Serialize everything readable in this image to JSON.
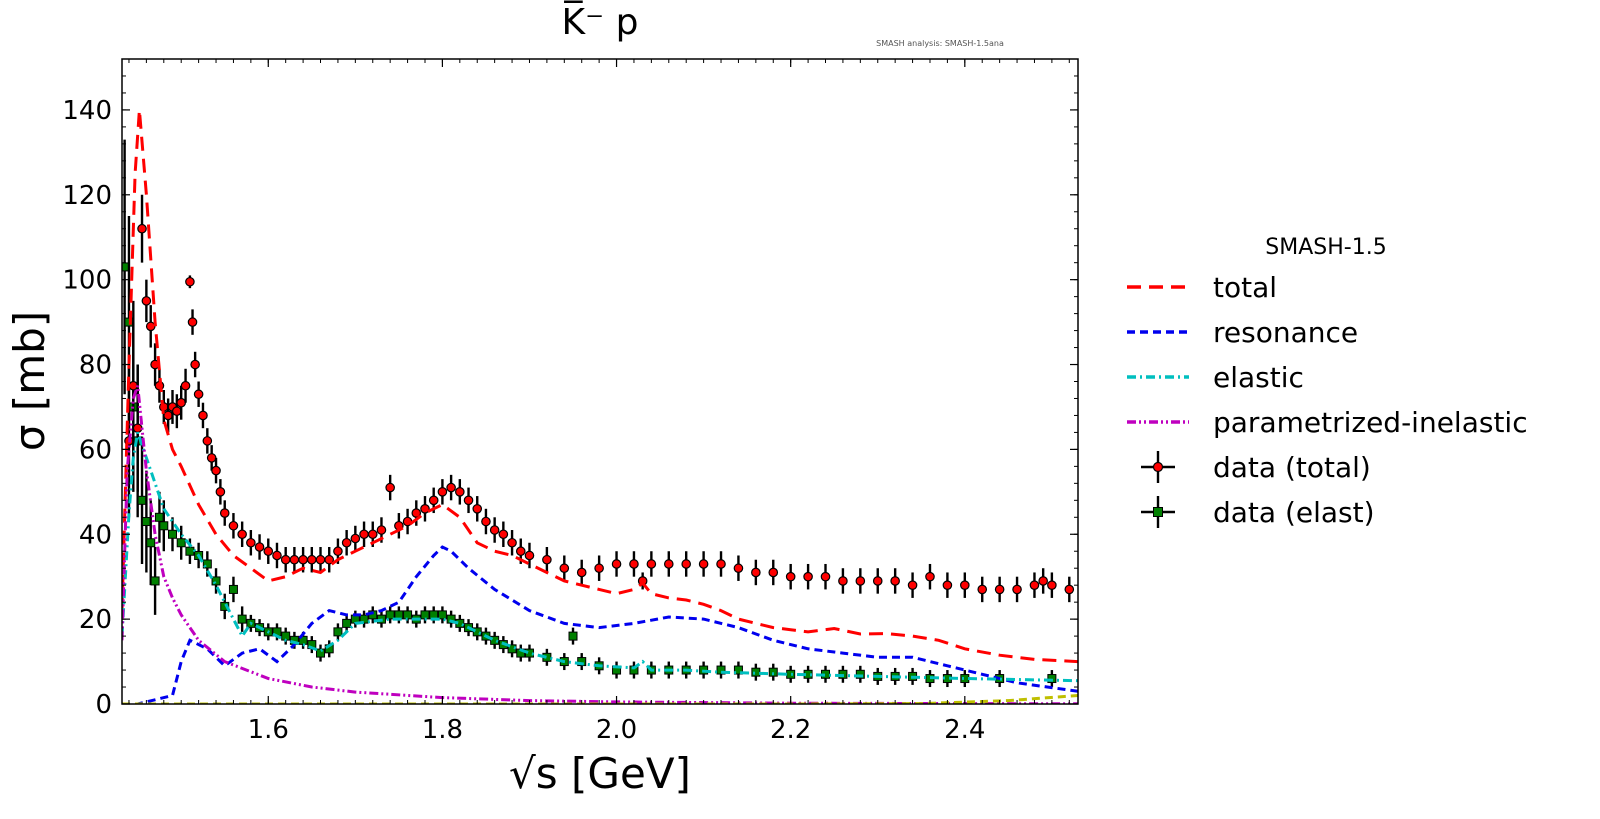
{
  "chart_data": {
    "type": "line",
    "title": "K̅⁻ p",
    "watermark": "SMASH analysis: SMASH-1.5ana",
    "xlabel": "√s [GeV]",
    "ylabel": "σ [mb]",
    "xlim": [
      1.432,
      2.53
    ],
    "ylim": [
      0,
      152
    ],
    "xticks": [
      1.6,
      1.8,
      2.0,
      2.2,
      2.4
    ],
    "xtick_labels": [
      "1.6",
      "1.8",
      "2.0",
      "2.2",
      "2.4"
    ],
    "yticks": [
      0,
      20,
      40,
      60,
      80,
      100,
      120,
      140
    ],
    "ytick_labels": [
      "0",
      "20",
      "40",
      "60",
      "80",
      "100",
      "120",
      "140"
    ],
    "grid": false,
    "legend_title": "SMASH-1.5",
    "legend_position": "outside-right",
    "series": [
      {
        "name": "total",
        "color": "#ff0000",
        "style": "long-dash",
        "x": [
          1.432,
          1.44,
          1.447,
          1.452,
          1.46,
          1.47,
          1.48,
          1.49,
          1.5,
          1.52,
          1.54,
          1.56,
          1.58,
          1.6,
          1.62,
          1.64,
          1.66,
          1.68,
          1.7,
          1.72,
          1.74,
          1.76,
          1.78,
          1.8,
          1.82,
          1.84,
          1.86,
          1.88,
          1.9,
          1.92,
          1.94,
          1.96,
          1.98,
          2.0,
          2.02,
          2.03,
          2.04,
          2.06,
          2.08,
          2.1,
          2.12,
          2.14,
          2.16,
          2.18,
          2.2,
          2.22,
          2.25,
          2.28,
          2.31,
          2.34,
          2.37,
          2.4,
          2.44,
          2.48,
          2.53
        ],
        "y": [
          22,
          80,
          125,
          140,
          120,
          90,
          67,
          60,
          56,
          47,
          40,
          35,
          32,
          29,
          30,
          32,
          31,
          34,
          36,
          38,
          40,
          42,
          45,
          47,
          44,
          38,
          36,
          35,
          33,
          31,
          29,
          28,
          27,
          26,
          27,
          28.5,
          26,
          25,
          24.5,
          23.5,
          22,
          20,
          19,
          18,
          17.5,
          17,
          17.8,
          16.5,
          16.6,
          16,
          15,
          13,
          11.5,
          10.5,
          10
        ]
      },
      {
        "name": "resonance",
        "color": "#0000ee",
        "style": "dash",
        "x": [
          1.432,
          1.45,
          1.49,
          1.5,
          1.51,
          1.53,
          1.55,
          1.57,
          1.59,
          1.61,
          1.63,
          1.65,
          1.67,
          1.69,
          1.71,
          1.73,
          1.75,
          1.77,
          1.79,
          1.8,
          1.81,
          1.83,
          1.86,
          1.9,
          1.94,
          1.98,
          2.02,
          2.06,
          2.1,
          2.14,
          2.18,
          2.22,
          2.26,
          2.3,
          2.34,
          2.38,
          2.42,
          2.46,
          2.53
        ],
        "y": [
          0,
          0,
          2,
          10,
          15,
          13,
          9,
          12,
          13,
          10,
          14,
          19,
          22,
          21,
          21,
          22,
          24,
          30,
          35,
          37,
          36,
          32,
          27,
          22,
          19,
          18,
          19,
          20.5,
          20,
          18,
          15,
          13,
          12,
          11,
          11,
          9,
          7,
          5,
          3
        ]
      },
      {
        "name": "elastic",
        "color": "#00bfbf",
        "style": "dash-dot",
        "x": [
          1.432,
          1.44,
          1.445,
          1.45,
          1.46,
          1.47,
          1.48,
          1.49,
          1.5,
          1.52,
          1.54,
          1.56,
          1.57,
          1.58,
          1.6,
          1.62,
          1.64,
          1.66,
          1.68,
          1.7,
          1.74,
          1.78,
          1.8,
          1.82,
          1.84,
          1.86,
          1.9,
          1.94,
          1.98,
          2.02,
          2.03,
          2.04,
          2.08,
          2.12,
          2.2,
          2.3,
          2.4,
          2.53
        ],
        "y": [
          16,
          45,
          58,
          64,
          58,
          52,
          46,
          43,
          40,
          35,
          28,
          20,
          16,
          19,
          17,
          15,
          14,
          12.5,
          15,
          19,
          20,
          20,
          20,
          19,
          17,
          15,
          12,
          10,
          9,
          8.5,
          10,
          8,
          8,
          7.5,
          7,
          6.5,
          6,
          5.5
        ]
      },
      {
        "name": "parametrized-inelastic",
        "color": "#bf00bf",
        "style": "dash-dot-dot",
        "x": [
          1.432,
          1.438,
          1.445,
          1.45,
          1.455,
          1.46,
          1.47,
          1.48,
          1.49,
          1.5,
          1.52,
          1.55,
          1.6,
          1.65,
          1.7,
          1.8,
          1.9,
          2.0,
          2.2,
          2.4,
          2.53
        ],
        "y": [
          15,
          55,
          72,
          75,
          65,
          55,
          40,
          30,
          25,
          21,
          15,
          10,
          6,
          4,
          2.8,
          1.5,
          0.8,
          0.5,
          0.2,
          0.1,
          0.05
        ]
      },
      {
        "name": "other",
        "color": "#bfbf00",
        "style": "dash",
        "in_legend": false,
        "x": [
          1.432,
          2.2,
          2.35,
          2.45,
          2.53
        ],
        "y": [
          0,
          0,
          0.1,
          0.8,
          2
        ]
      }
    ],
    "data_total": {
      "name": "data (total)",
      "color": "#ff0000",
      "marker": "circle",
      "points": [
        [
          1.44,
          62,
          18
        ],
        [
          1.445,
          75,
          20
        ],
        [
          1.45,
          65,
          15
        ],
        [
          1.455,
          112,
          8
        ],
        [
          1.46,
          95,
          5
        ],
        [
          1.465,
          89,
          5
        ],
        [
          1.47,
          80,
          5
        ],
        [
          1.475,
          75,
          4
        ],
        [
          1.48,
          70,
          4
        ],
        [
          1.485,
          68,
          4
        ],
        [
          1.49,
          70,
          4
        ],
        [
          1.495,
          69,
          4
        ],
        [
          1.5,
          71,
          4
        ],
        [
          1.505,
          75,
          4
        ],
        [
          1.51,
          99.5,
          1.5
        ],
        [
          1.513,
          90,
          3
        ],
        [
          1.516,
          80,
          3
        ],
        [
          1.52,
          73,
          3
        ],
        [
          1.525,
          68,
          3
        ],
        [
          1.53,
          62,
          3
        ],
        [
          1.535,
          58,
          3
        ],
        [
          1.54,
          55,
          3
        ],
        [
          1.545,
          50,
          3
        ],
        [
          1.55,
          45,
          3
        ],
        [
          1.56,
          42,
          3
        ],
        [
          1.57,
          40,
          3
        ],
        [
          1.58,
          38,
          3
        ],
        [
          1.59,
          37,
          3
        ],
        [
          1.6,
          36,
          3
        ],
        [
          1.61,
          35,
          3
        ],
        [
          1.62,
          34,
          3
        ],
        [
          1.63,
          34,
          3
        ],
        [
          1.64,
          34,
          3
        ],
        [
          1.65,
          34,
          3
        ],
        [
          1.66,
          34,
          3
        ],
        [
          1.67,
          34,
          3
        ],
        [
          1.68,
          36,
          3
        ],
        [
          1.69,
          38,
          3
        ],
        [
          1.7,
          39,
          3
        ],
        [
          1.71,
          40,
          3
        ],
        [
          1.72,
          40,
          3
        ],
        [
          1.73,
          41,
          3
        ],
        [
          1.74,
          51,
          3
        ],
        [
          1.75,
          42,
          3
        ],
        [
          1.76,
          43,
          3
        ],
        [
          1.77,
          45,
          3
        ],
        [
          1.78,
          46,
          3
        ],
        [
          1.79,
          48,
          3
        ],
        [
          1.8,
          50,
          3
        ],
        [
          1.81,
          51,
          3
        ],
        [
          1.82,
          50,
          3
        ],
        [
          1.83,
          48,
          3
        ],
        [
          1.84,
          46,
          3
        ],
        [
          1.85,
          43,
          3
        ],
        [
          1.86,
          41,
          3
        ],
        [
          1.87,
          40,
          3
        ],
        [
          1.88,
          38,
          3
        ],
        [
          1.89,
          36,
          3
        ],
        [
          1.9,
          35,
          3
        ],
        [
          1.92,
          34,
          3
        ],
        [
          1.94,
          32,
          3
        ],
        [
          1.96,
          31,
          3
        ],
        [
          1.98,
          32,
          3
        ],
        [
          2.0,
          33,
          3
        ],
        [
          2.02,
          33,
          3
        ],
        [
          2.03,
          29,
          2
        ],
        [
          2.04,
          33,
          3
        ],
        [
          2.06,
          33,
          3
        ],
        [
          2.08,
          33,
          3
        ],
        [
          2.1,
          33,
          3
        ],
        [
          2.12,
          33,
          3
        ],
        [
          2.14,
          32,
          3
        ],
        [
          2.16,
          31,
          3
        ],
        [
          2.18,
          31,
          3
        ],
        [
          2.2,
          30,
          3
        ],
        [
          2.22,
          30,
          3
        ],
        [
          2.24,
          30,
          3
        ],
        [
          2.26,
          29,
          3
        ],
        [
          2.28,
          29,
          3
        ],
        [
          2.3,
          29,
          3
        ],
        [
          2.32,
          29,
          3
        ],
        [
          2.34,
          28,
          3
        ],
        [
          2.36,
          30,
          3
        ],
        [
          2.38,
          28,
          3
        ],
        [
          2.4,
          28,
          3
        ],
        [
          2.42,
          27,
          3
        ],
        [
          2.44,
          27,
          3
        ],
        [
          2.46,
          27,
          3
        ],
        [
          2.48,
          28,
          3
        ],
        [
          2.49,
          29,
          3
        ],
        [
          2.5,
          28,
          3
        ],
        [
          2.52,
          27,
          3
        ]
      ]
    },
    "data_elast": {
      "name": "data (elast)",
      "color": "#008000",
      "marker": "square",
      "points": [
        [
          1.435,
          103,
          30
        ],
        [
          1.44,
          90,
          25
        ],
        [
          1.445,
          70,
          20
        ],
        [
          1.45,
          62,
          18
        ],
        [
          1.455,
          48,
          15
        ],
        [
          1.46,
          43,
          12
        ],
        [
          1.465,
          38,
          10
        ],
        [
          1.47,
          29,
          8
        ],
        [
          1.475,
          44,
          6
        ],
        [
          1.48,
          42,
          6
        ],
        [
          1.49,
          40,
          4
        ],
        [
          1.5,
          38,
          4
        ],
        [
          1.51,
          36,
          3
        ],
        [
          1.52,
          35,
          3
        ],
        [
          1.53,
          33,
          3
        ],
        [
          1.54,
          29,
          3
        ],
        [
          1.55,
          23,
          3
        ],
        [
          1.56,
          27,
          3
        ],
        [
          1.57,
          20,
          3
        ],
        [
          1.58,
          19,
          2
        ],
        [
          1.59,
          18,
          2
        ],
        [
          1.6,
          17,
          2
        ],
        [
          1.61,
          17,
          2
        ],
        [
          1.62,
          16,
          2
        ],
        [
          1.63,
          15,
          2
        ],
        [
          1.64,
          15,
          2
        ],
        [
          1.65,
          14,
          2
        ],
        [
          1.66,
          12,
          2
        ],
        [
          1.67,
          13,
          2
        ],
        [
          1.68,
          17,
          2
        ],
        [
          1.69,
          19,
          2
        ],
        [
          1.7,
          20,
          2
        ],
        [
          1.71,
          20,
          2
        ],
        [
          1.72,
          21,
          2
        ],
        [
          1.73,
          20,
          2
        ],
        [
          1.74,
          21,
          2
        ],
        [
          1.75,
          21,
          2
        ],
        [
          1.76,
          21,
          2
        ],
        [
          1.77,
          20,
          2
        ],
        [
          1.78,
          21,
          2
        ],
        [
          1.79,
          21,
          2
        ],
        [
          1.8,
          21,
          2
        ],
        [
          1.81,
          20,
          2
        ],
        [
          1.82,
          19,
          2
        ],
        [
          1.83,
          18,
          2
        ],
        [
          1.84,
          17,
          2
        ],
        [
          1.85,
          16,
          2
        ],
        [
          1.86,
          15,
          2
        ],
        [
          1.87,
          14,
          2
        ],
        [
          1.88,
          13,
          2
        ],
        [
          1.89,
          12,
          2
        ],
        [
          1.9,
          12,
          2
        ],
        [
          1.92,
          11,
          2
        ],
        [
          1.94,
          10,
          2
        ],
        [
          1.95,
          16,
          2
        ],
        [
          1.96,
          10,
          2
        ],
        [
          1.98,
          9,
          2
        ],
        [
          2.0,
          8,
          2
        ],
        [
          2.02,
          8,
          2
        ],
        [
          2.04,
          8,
          2
        ],
        [
          2.06,
          8,
          2
        ],
        [
          2.08,
          8,
          2
        ],
        [
          2.1,
          8,
          2
        ],
        [
          2.12,
          8,
          2
        ],
        [
          2.14,
          8,
          2
        ],
        [
          2.16,
          7.5,
          2
        ],
        [
          2.18,
          7.5,
          2
        ],
        [
          2.2,
          7,
          2
        ],
        [
          2.22,
          7,
          2
        ],
        [
          2.24,
          7,
          2
        ],
        [
          2.26,
          7,
          2
        ],
        [
          2.28,
          7,
          2
        ],
        [
          2.3,
          6.5,
          2
        ],
        [
          2.32,
          6.5,
          2
        ],
        [
          2.34,
          6.5,
          2
        ],
        [
          2.36,
          6,
          2
        ],
        [
          2.38,
          6,
          2
        ],
        [
          2.4,
          6,
          2
        ],
        [
          2.44,
          6,
          2
        ],
        [
          2.5,
          6,
          2
        ]
      ]
    }
  }
}
